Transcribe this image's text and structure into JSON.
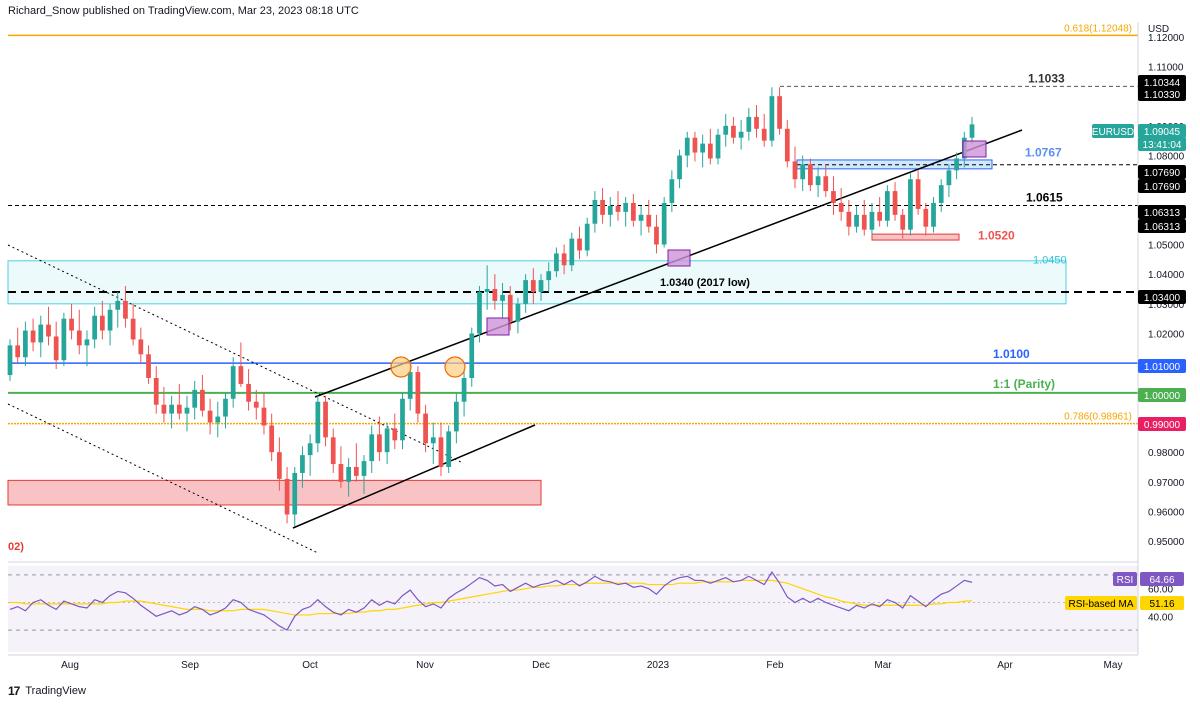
{
  "header": {
    "text": "Richard_Snow published on TradingView.com, Mar 23, 2023 08:18 UTC"
  },
  "footer": {
    "brand": "TradingView",
    "logo": "17"
  },
  "price_axis": {
    "currency": "USD",
    "ticks": [
      "1.12000",
      "1.11000",
      "1.10000",
      "1.09000",
      "1.08000",
      "1.07000",
      "1.06000",
      "1.05000",
      "1.04000",
      "1.03000",
      "1.02000",
      "1.01000",
      "1.00000",
      "0.99000",
      "0.98000",
      "0.97000",
      "0.96000",
      "0.95000"
    ]
  },
  "time_axis": {
    "labels": [
      "Aug",
      "Sep",
      "Oct",
      "Nov",
      "Dec",
      "2023",
      "Feb",
      "Mar",
      "Apr",
      "May"
    ]
  },
  "badges": [
    {
      "text": "1.10344",
      "price": 1.10344,
      "bg": "#000000",
      "fg": "#ffffff"
    },
    {
      "text": "1.10330",
      "price": 1.1033,
      "bg": "#000000",
      "fg": "#ffffff"
    },
    {
      "text": "1.09045",
      "price": 1.09045,
      "bg": "#26a69a",
      "fg": "#ffffff"
    },
    {
      "text": "13:41:04",
      "price": 1.0877,
      "bg": "#26a69a",
      "fg": "#ffffff"
    },
    {
      "text": "1.07690",
      "price": 1.0769,
      "bg": "#000000",
      "fg": "#ffffff"
    },
    {
      "text": "1.07690",
      "price": 1.0741,
      "bg": "#000000",
      "fg": "#ffffff"
    },
    {
      "text": "1.06313",
      "price": 1.06313,
      "bg": "#000000",
      "fg": "#ffffff"
    },
    {
      "text": "1.06313",
      "price": 1.0604,
      "bg": "#000000",
      "fg": "#ffffff"
    },
    {
      "text": "1.03400",
      "price": 1.034,
      "bg": "#000000",
      "fg": "#ffffff"
    },
    {
      "text": "1.01000",
      "price": 1.01,
      "bg": "#2962ff",
      "fg": "#ffffff"
    },
    {
      "text": "1.00000",
      "price": 1.0,
      "bg": "#4caf50",
      "fg": "#ffffff"
    },
    {
      "text": "0.99000",
      "price": 0.99,
      "bg": "#e91e63",
      "fg": "#ffffff"
    }
  ],
  "symbol_tag": {
    "text": "EURUSD",
    "price": 1.0906
  },
  "levels": [
    {
      "label": "0.618(1.12048)",
      "price": 1.12048,
      "color": "#f7a600",
      "style": "solid"
    },
    {
      "label": "1.1033",
      "price": 1.1033,
      "color": "#555555",
      "style": "dashed"
    },
    {
      "label": "1.0767",
      "price": 1.0769,
      "color": "#2962ff",
      "style": "dashed"
    },
    {
      "label": "1.0615",
      "price": 1.06313,
      "color": "#000000",
      "style": "dashed"
    },
    {
      "label": "1.0520",
      "price": 1.052,
      "color": "#ef5350",
      "style": "none"
    },
    {
      "label": "1.0450",
      "price": 1.045,
      "color": "#00bcd4",
      "style": "none"
    },
    {
      "label": "1.0340 (2017 low)",
      "price": 1.034,
      "color": "#000000",
      "style": "dashed"
    },
    {
      "label": "1.0100",
      "price": 1.01,
      "color": "#2962ff",
      "style": "solid"
    },
    {
      "label": "1:1 (Parity)",
      "price": 1.0,
      "color": "#4caf50",
      "style": "solid"
    },
    {
      "label": "0.786(0.98961)",
      "price": 0.98961,
      "color": "#f7a600",
      "style": "solid"
    }
  ],
  "cut_label": "02)",
  "rsi": {
    "label": "RSI",
    "value": "64.66",
    "ma_label": "RSI-based MA",
    "ma_value": "51.16",
    "tick": "60.00",
    "tick2": "40.00",
    "color": "#7e57c2",
    "ma_color": "#ffd600"
  },
  "chart_data": {
    "type": "candlestick",
    "symbol": "EURUSD",
    "ylim": [
      0.945,
      1.125
    ],
    "ohlc": [
      [
        1.006,
        1.018,
        1.004,
        1.016
      ],
      [
        1.016,
        1.022,
        1.01,
        1.012
      ],
      [
        1.012,
        1.024,
        1.009,
        1.021
      ],
      [
        1.021,
        1.025,
        1.014,
        1.017
      ],
      [
        1.017,
        1.026,
        1.012,
        1.023
      ],
      [
        1.023,
        1.029,
        1.016,
        1.019
      ],
      [
        1.019,
        1.024,
        1.008,
        1.011
      ],
      [
        1.011,
        1.027,
        1.009,
        1.025
      ],
      [
        1.025,
        1.03,
        1.018,
        1.021
      ],
      [
        1.021,
        1.028,
        1.013,
        1.016
      ],
      [
        1.016,
        1.021,
        1.009,
        1.018
      ],
      [
        1.018,
        1.029,
        1.015,
        1.026
      ],
      [
        1.026,
        1.031,
        1.018,
        1.021
      ],
      [
        1.021,
        1.03,
        1.016,
        1.028
      ],
      [
        1.028,
        1.034,
        1.022,
        1.031
      ],
      [
        1.031,
        1.036,
        1.022,
        1.025
      ],
      [
        1.025,
        1.03,
        1.016,
        1.018
      ],
      [
        1.018,
        1.022,
        1.01,
        1.013
      ],
      [
        1.013,
        1.016,
        1.003,
        1.005
      ],
      [
        1.005,
        1.009,
        0.993,
        0.996
      ],
      [
        0.996,
        1.002,
        0.99,
        0.993
      ],
      [
        0.993,
        0.999,
        0.988,
        0.996
      ],
      [
        0.996,
        1.003,
        0.991,
        0.993
      ],
      [
        0.993,
        0.999,
        0.987,
        0.995
      ],
      [
        0.995,
        1.004,
        0.991,
        1.001
      ],
      [
        1.001,
        1.006,
        0.992,
        0.994
      ],
      [
        0.994,
        0.998,
        0.986,
        0.99
      ],
      [
        0.99,
        0.997,
        0.985,
        0.992
      ],
      [
        0.992,
        1.0,
        0.988,
        0.998
      ],
      [
        0.998,
        1.012,
        0.995,
        1.009
      ],
      [
        1.009,
        1.017,
        1.002,
        1.003
      ],
      [
        1.003,
        1.008,
        0.994,
        0.997
      ],
      [
        0.997,
        1.001,
        0.991,
        0.995
      ],
      [
        0.995,
        1.0,
        0.986,
        0.989
      ],
      [
        0.989,
        0.993,
        0.977,
        0.98
      ],
      [
        0.98,
        0.985,
        0.967,
        0.971
      ],
      [
        0.971,
        0.975,
        0.956,
        0.959
      ],
      [
        0.959,
        0.975,
        0.955,
        0.973
      ],
      [
        0.973,
        0.982,
        0.968,
        0.979
      ],
      [
        0.979,
        0.986,
        0.972,
        0.983
      ],
      [
        0.983,
        0.999,
        0.98,
        0.997
      ],
      [
        0.997,
        0.999,
        0.982,
        0.985
      ],
      [
        0.985,
        0.988,
        0.973,
        0.976
      ],
      [
        0.976,
        0.982,
        0.968,
        0.97
      ],
      [
        0.97,
        0.978,
        0.965,
        0.975
      ],
      [
        0.975,
        0.983,
        0.97,
        0.972
      ],
      [
        0.972,
        0.979,
        0.966,
        0.977
      ],
      [
        0.977,
        0.989,
        0.973,
        0.986
      ],
      [
        0.986,
        0.992,
        0.977,
        0.98
      ],
      [
        0.98,
        0.99,
        0.976,
        0.988
      ],
      [
        0.988,
        0.993,
        0.981,
        0.984
      ],
      [
        0.984,
        1.0,
        0.981,
        0.998
      ],
      [
        0.998,
        1.01,
        0.994,
        1.007
      ],
      [
        1.007,
        1.009,
        0.99,
        0.993
      ],
      [
        0.993,
        0.996,
        0.98,
        0.983
      ],
      [
        0.983,
        0.99,
        0.976,
        0.985
      ],
      [
        0.985,
        0.99,
        0.972,
        0.975
      ],
      [
        0.975,
        0.989,
        0.973,
        0.987
      ],
      [
        0.987,
        1.0,
        0.983,
        0.997
      ],
      [
        0.997,
        1.008,
        0.992,
        1.005
      ],
      [
        1.005,
        1.022,
        1.002,
        1.02
      ],
      [
        1.02,
        1.036,
        1.017,
        1.034
      ],
      [
        1.034,
        1.043,
        1.028,
        1.035
      ],
      [
        1.035,
        1.04,
        1.028,
        1.031
      ],
      [
        1.031,
        1.037,
        1.025,
        1.033
      ],
      [
        1.033,
        1.036,
        1.021,
        1.024
      ],
      [
        1.024,
        1.032,
        1.02,
        1.03
      ],
      [
        1.03,
        1.04,
        1.027,
        1.038
      ],
      [
        1.038,
        1.042,
        1.03,
        1.034
      ],
      [
        1.034,
        1.04,
        1.031,
        1.038
      ],
      [
        1.038,
        1.044,
        1.034,
        1.041
      ],
      [
        1.041,
        1.049,
        1.039,
        1.047
      ],
      [
        1.047,
        1.05,
        1.04,
        1.043
      ],
      [
        1.043,
        1.054,
        1.041,
        1.052
      ],
      [
        1.052,
        1.056,
        1.045,
        1.048
      ],
      [
        1.048,
        1.059,
        1.046,
        1.057
      ],
      [
        1.057,
        1.068,
        1.054,
        1.065
      ],
      [
        1.065,
        1.069,
        1.057,
        1.06
      ],
      [
        1.06,
        1.066,
        1.056,
        1.063
      ],
      [
        1.063,
        1.068,
        1.058,
        1.061
      ],
      [
        1.061,
        1.066,
        1.056,
        1.064
      ],
      [
        1.064,
        1.067,
        1.056,
        1.058
      ],
      [
        1.058,
        1.063,
        1.053,
        1.06
      ],
      [
        1.06,
        1.065,
        1.054,
        1.056
      ],
      [
        1.056,
        1.06,
        1.047,
        1.05
      ],
      [
        1.05,
        1.066,
        1.049,
        1.064
      ],
      [
        1.064,
        1.075,
        1.061,
        1.072
      ],
      [
        1.072,
        1.082,
        1.069,
        1.08
      ],
      [
        1.08,
        1.088,
        1.076,
        1.086
      ],
      [
        1.086,
        1.088,
        1.078,
        1.081
      ],
      [
        1.081,
        1.087,
        1.076,
        1.084
      ],
      [
        1.084,
        1.089,
        1.077,
        1.079
      ],
      [
        1.079,
        1.089,
        1.077,
        1.087
      ],
      [
        1.087,
        1.094,
        1.083,
        1.09
      ],
      [
        1.09,
        1.093,
        1.084,
        1.086
      ],
      [
        1.086,
        1.092,
        1.082,
        1.088
      ],
      [
        1.088,
        1.096,
        1.085,
        1.093
      ],
      [
        1.093,
        1.097,
        1.086,
        1.089
      ],
      [
        1.089,
        1.094,
        1.083,
        1.085
      ],
      [
        1.085,
        1.103,
        1.083,
        1.1
      ],
      [
        1.1,
        1.103,
        1.087,
        1.089
      ],
      [
        1.089,
        1.092,
        1.076,
        1.078
      ],
      [
        1.078,
        1.083,
        1.069,
        1.072
      ],
      [
        1.072,
        1.08,
        1.068,
        1.077
      ],
      [
        1.077,
        1.079,
        1.068,
        1.07
      ],
      [
        1.07,
        1.076,
        1.066,
        1.073
      ],
      [
        1.073,
        1.077,
        1.066,
        1.068
      ],
      [
        1.068,
        1.073,
        1.06,
        1.064
      ],
      [
        1.064,
        1.069,
        1.058,
        1.061
      ],
      [
        1.061,
        1.065,
        1.053,
        1.056
      ],
      [
        1.056,
        1.063,
        1.054,
        1.06
      ],
      [
        1.06,
        1.065,
        1.053,
        1.055
      ],
      [
        1.055,
        1.064,
        1.053,
        1.061
      ],
      [
        1.061,
        1.066,
        1.056,
        1.058
      ],
      [
        1.058,
        1.07,
        1.056,
        1.068
      ],
      [
        1.068,
        1.071,
        1.058,
        1.06
      ],
      [
        1.06,
        1.062,
        1.052,
        1.055
      ],
      [
        1.055,
        1.074,
        1.053,
        1.072
      ],
      [
        1.072,
        1.075,
        1.06,
        1.062
      ],
      [
        1.062,
        1.064,
        1.053,
        1.056
      ],
      [
        1.056,
        1.066,
        1.054,
        1.064
      ],
      [
        1.064,
        1.072,
        1.061,
        1.07
      ],
      [
        1.07,
        1.077,
        1.066,
        1.075
      ],
      [
        1.075,
        1.081,
        1.072,
        1.079
      ],
      [
        1.079,
        1.088,
        1.076,
        1.086
      ],
      [
        1.086,
        1.093,
        1.084,
        1.0905
      ]
    ],
    "rsi": [
      45,
      47,
      44,
      50,
      52,
      48,
      45,
      51,
      49,
      47,
      46,
      52,
      50,
      55,
      58,
      57,
      53,
      48,
      44,
      40,
      42,
      44,
      41,
      43,
      47,
      45,
      41,
      43,
      46,
      52,
      50,
      45,
      43,
      41,
      37,
      33,
      30,
      40,
      45,
      47,
      52,
      47,
      43,
      41,
      45,
      43,
      46,
      52,
      48,
      51,
      49,
      55,
      59,
      52,
      47,
      49,
      46,
      53,
      57,
      60,
      64,
      68,
      66,
      62,
      63,
      58,
      61,
      64,
      61,
      63,
      64,
      66,
      63,
      66,
      62,
      65,
      69,
      66,
      65,
      63,
      64,
      61,
      62,
      60,
      56,
      62,
      66,
      68,
      69,
      66,
      66,
      64,
      66,
      68,
      65,
      66,
      69,
      66,
      63,
      72,
      64,
      54,
      50,
      53,
      50,
      53,
      50,
      48,
      46,
      44,
      48,
      46,
      49,
      47,
      52,
      50,
      46,
      55,
      51,
      47,
      52,
      56,
      58,
      62,
      66,
      64.66
    ],
    "rsi_ma": [
      50,
      50,
      49,
      49,
      49,
      49,
      49,
      49,
      49,
      49,
      49,
      49,
      49,
      50,
      50,
      51,
      51,
      51,
      50,
      49,
      48,
      47,
      46,
      45,
      45,
      45,
      44,
      44,
      44,
      44,
      45,
      45,
      45,
      45,
      44,
      43,
      42,
      41,
      41,
      41,
      42,
      42,
      42,
      42,
      42,
      43,
      43,
      44,
      44,
      45,
      45,
      46,
      47,
      48,
      49,
      50,
      50,
      51,
      52,
      53,
      54,
      55,
      56,
      57,
      58,
      59,
      59,
      60,
      61,
      61,
      62,
      62,
      63,
      63,
      63,
      64,
      64,
      64,
      64,
      64,
      64,
      64,
      64,
      63,
      63,
      63,
      63,
      64,
      64,
      64,
      65,
      65,
      65,
      65,
      65,
      66,
      66,
      66,
      66,
      66,
      65,
      64,
      62,
      60,
      58,
      56,
      54,
      53,
      51,
      50,
      49,
      48,
      48,
      48,
      48,
      48,
      48,
      48,
      48,
      48,
      49,
      49,
      50,
      50,
      51,
      51.16
    ]
  }
}
